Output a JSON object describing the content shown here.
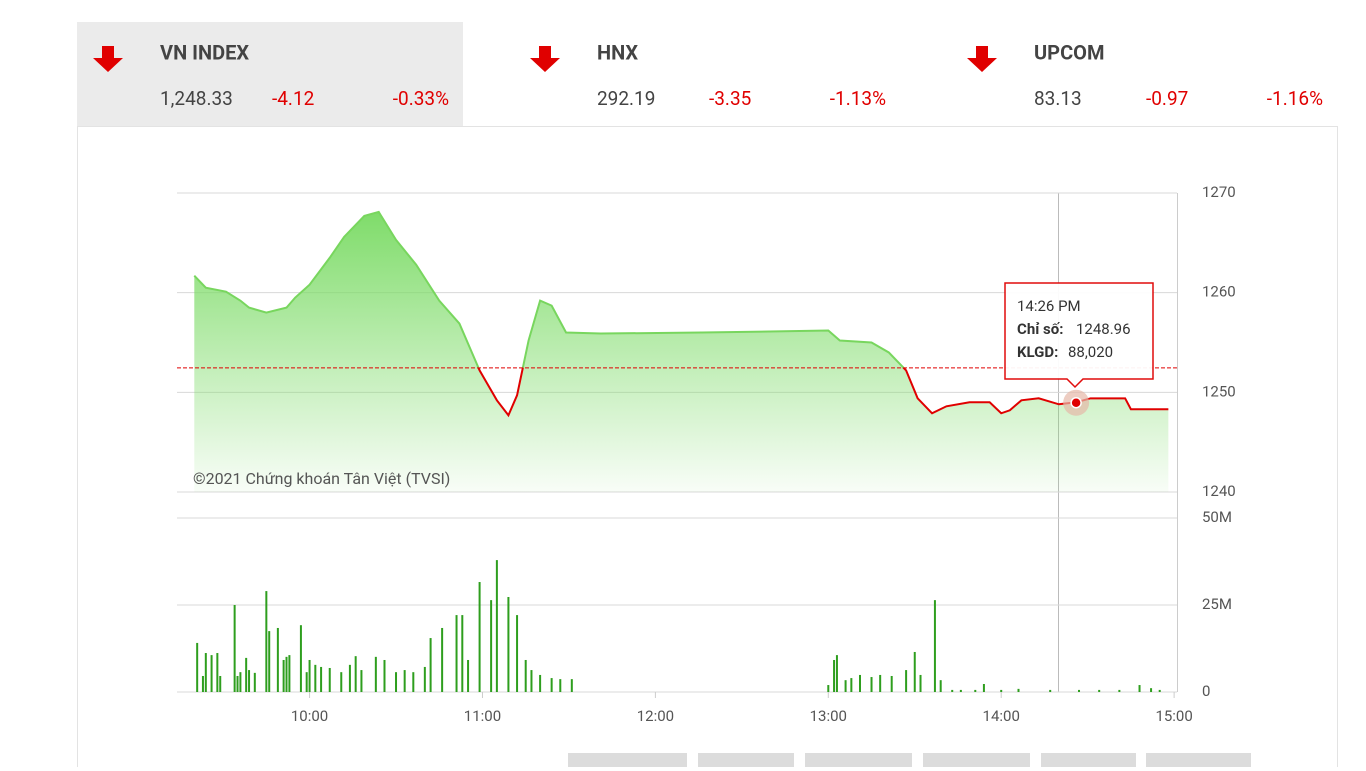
{
  "indices": [
    {
      "name": "VN INDEX",
      "value": "1,248.33",
      "change": "-4.12",
      "change_pct": "-0.33%"
    },
    {
      "name": "HNX",
      "value": "292.19",
      "change": "-3.35",
      "change_pct": "-1.13%"
    },
    {
      "name": "UPCOM",
      "value": "83.13",
      "change": "-0.97",
      "change_pct": "-1.16%"
    }
  ],
  "chart_data": [
    {
      "type": "area",
      "color": "#78d65e",
      "below_color": "#e00000",
      "reference_line": 1252.45,
      "x": [
        560,
        564,
        571,
        576,
        579,
        585,
        592,
        595,
        600,
        607,
        612,
        619,
        624,
        630,
        637,
        645,
        652,
        659,
        665,
        669,
        672,
        676,
        680,
        684,
        689,
        701,
        736,
        780,
        784,
        795,
        801,
        807,
        811,
        816,
        821,
        829,
        836,
        840,
        843,
        847,
        853,
        860,
        866,
        871,
        883,
        885,
        898
      ],
      "values": [
        1261.7,
        1260.5,
        1260.1,
        1259.2,
        1258.5,
        1258.0,
        1258.5,
        1259.5,
        1260.8,
        1263.5,
        1265.6,
        1267.7,
        1268.1,
        1265.3,
        1262.8,
        1259.2,
        1256.9,
        1252.2,
        1249.2,
        1247.7,
        1249.7,
        1255.2,
        1259.2,
        1258.7,
        1256.0,
        1255.9,
        1256.0,
        1256.2,
        1255.2,
        1255.0,
        1254.0,
        1252.2,
        1249.4,
        1247.9,
        1248.6,
        1249.0,
        1249.0,
        1247.9,
        1248.2,
        1249.2,
        1249.4,
        1248.8,
        1249.0,
        1249.4,
        1249.4,
        1248.3,
        1248.3
      ],
      "xlim": [
        554,
        901
      ],
      "ylim": [
        1240,
        1270
      ],
      "yticks": [
        1240,
        1250,
        1260,
        1270
      ],
      "grid": true,
      "annotation": "©2021 Chứng khoán Tân Việt (TVSI)",
      "tooltip": {
        "time": "14:26 PM",
        "x": 866,
        "index_label": "Chỉ số:",
        "value": 1248.96,
        "volume_label": "KLGD:",
        "volume": 88020,
        "volume_text": "88,020"
      }
    },
    {
      "type": "bar",
      "color": "#2e9e1e",
      "x": [
        561,
        563,
        564,
        566,
        568,
        569,
        574,
        575,
        576,
        578,
        579,
        581,
        585,
        586,
        589,
        591,
        592,
        593,
        597,
        599,
        600,
        602,
        604,
        607,
        611,
        614,
        616,
        618,
        623,
        626,
        630,
        633,
        636,
        640,
        642,
        646,
        651,
        653,
        655,
        659,
        663,
        665,
        669,
        672,
        675,
        677,
        680,
        684,
        687,
        691,
        780,
        782,
        783,
        786,
        788,
        791,
        795,
        798,
        802,
        807,
        810,
        812,
        817,
        819,
        823,
        826,
        831,
        834,
        840,
        846,
        857,
        867,
        874,
        881,
        888,
        892,
        895
      ],
      "values": [
        14.1,
        4.6,
        11.2,
        10.6,
        11.2,
        4.6,
        25,
        4.6,
        5.7,
        9.8,
        6.3,
        5.5,
        29,
        17.5,
        18.4,
        9.2,
        10.1,
        10.6,
        19.2,
        5.7,
        9.2,
        7.8,
        7.2,
        6.9,
        5.7,
        7.8,
        10.3,
        6.3,
        10.1,
        9.2,
        5.7,
        6.3,
        5.7,
        7.2,
        15.5,
        18.4,
        22.1,
        22.1,
        9.2,
        31.6,
        26.4,
        37.9,
        27.3,
        22.1,
        9.2,
        6.3,
        4.9,
        4,
        3.7,
        3.7,
        2,
        9.2,
        10.6,
        3.4,
        4,
        4.9,
        4.3,
        4.9,
        4.6,
        6.3,
        11.5,
        4.9,
        26.4,
        3.4,
        0.6,
        0.6,
        0.6,
        2.3,
        0.6,
        0.9,
        0.6,
        0.6,
        0.6,
        0.6,
        2,
        1.1,
        0.6
      ],
      "xlim": [
        554,
        901
      ],
      "ylim": [
        0,
        50
      ],
      "yticks": [
        0,
        {
          "value": 25,
          "label": "25M"
        },
        {
          "value": 50,
          "label": "50M"
        }
      ],
      "xticks": [
        {
          "value": 600,
          "label": "10:00"
        },
        {
          "value": 660,
          "label": "11:00"
        },
        {
          "value": 720,
          "label": "12:00"
        },
        {
          "value": 780,
          "label": "13:00"
        },
        {
          "value": 840,
          "label": "14:00"
        },
        {
          "value": 900,
          "label": "15:00"
        }
      ],
      "grid": true
    }
  ]
}
